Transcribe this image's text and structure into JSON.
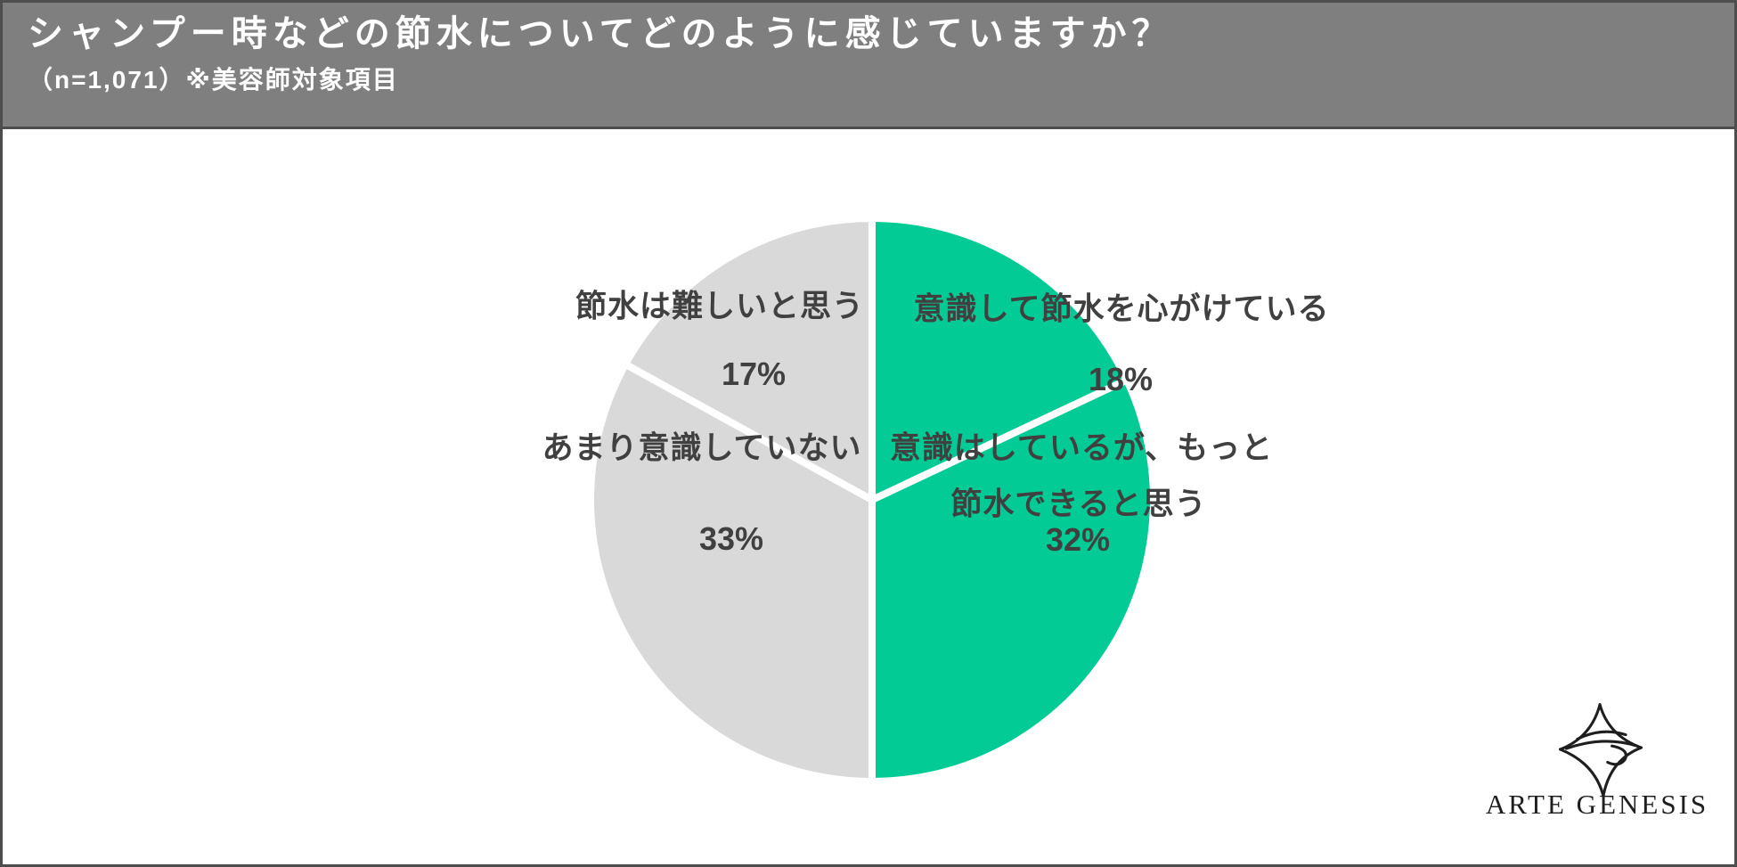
{
  "page": {
    "bg_color": "#FFFFFF",
    "border_color": "#4D4D4D"
  },
  "header": {
    "title": "シャンプー時などの節水についてどのように感じていますか？",
    "subtitle": "（n=1,071）※美容師対象項目",
    "bg_color": "#7F7F7F",
    "text_color": "#FFFFFF"
  },
  "chart_data": {
    "type": "pie",
    "title": "シャンプー時などの節水についてどのように感じていますか？",
    "sample_note": "（n=1,071）※美容師対象項目",
    "unit": "%",
    "direction": "clockwise",
    "start_angle_deg": 0,
    "separator_color": "#FFFFFF",
    "label_color": "#404040",
    "accent_color": "#03CB95",
    "muted_color": "#D9D9D9",
    "slices": [
      {
        "label": "意識して節水を心がけている",
        "value": 18,
        "pct_label": "18%",
        "color": "#03CB95",
        "label_lines": [
          "意識して節水を心がけている"
        ]
      },
      {
        "label": "意識はしているが、もっと節水できると思う",
        "value": 32,
        "pct_label": "32%",
        "color": "#03CB95",
        "label_lines": [
          "意識はしているが、もっと",
          "節水できると思う"
        ]
      },
      {
        "label": "あまり意識していない",
        "value": 33,
        "pct_label": "33%",
        "color": "#D9D9D9",
        "label_lines": [
          "あまり意識していない"
        ]
      },
      {
        "label": "節水は難しいと思う",
        "value": 17,
        "pct_label": "17%",
        "color": "#D9D9D9",
        "label_lines": [
          "節水は難しいと思う"
        ]
      }
    ]
  },
  "logo": {
    "wordmark": "ARTE GENESIS"
  }
}
